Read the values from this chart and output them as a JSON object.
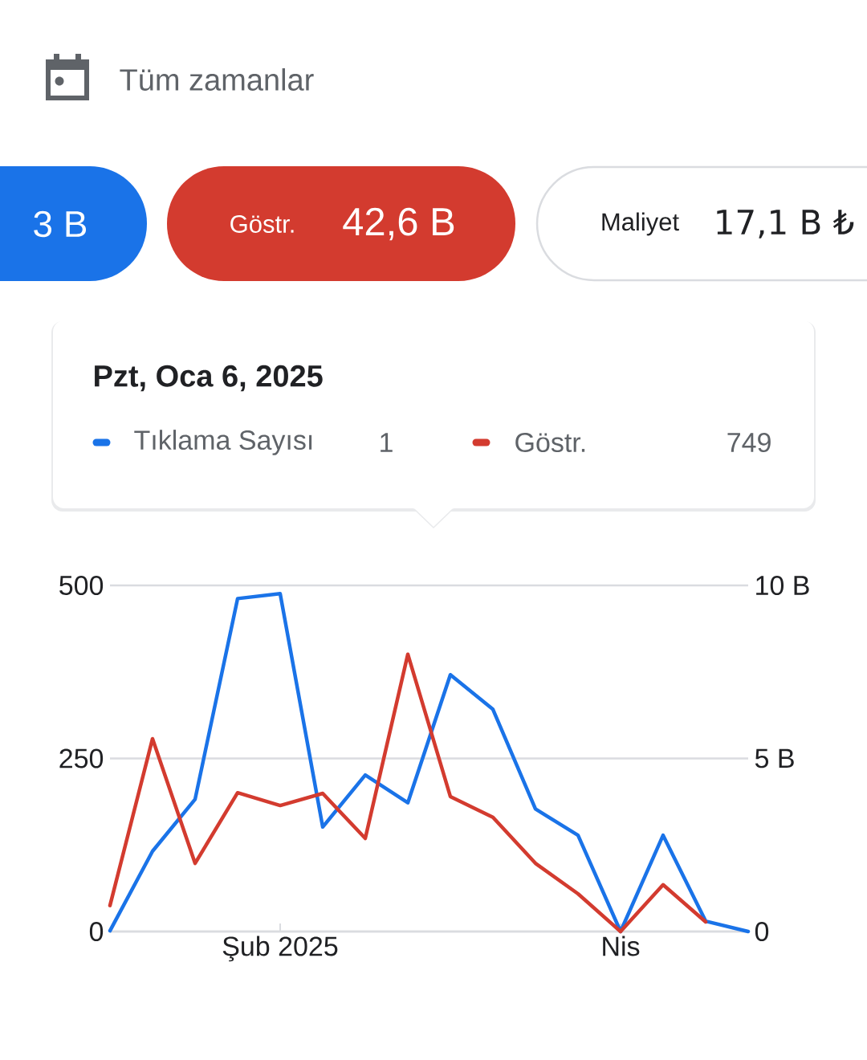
{
  "chart_data": {
    "type": "line",
    "categories": [
      null,
      null,
      null,
      null,
      "Şub 2025",
      null,
      null,
      null,
      null,
      null,
      null,
      null,
      "Nis",
      null,
      null,
      null
    ],
    "series": [
      {
        "name": "Tıklama Sayısı",
        "color": "#1a73e8",
        "values": [
          1,
          116,
          191,
          481,
          488,
          151,
          226,
          186,
          371,
          321,
          177,
          139,
          0,
          139,
          15,
          0
        ]
      },
      {
        "name": "Göstr.",
        "color": "#d33b2f",
        "axis": "y2",
        "values": [
          0.75,
          5.57,
          1.97,
          4.01,
          3.64,
          3.99,
          2.69,
          8.01,
          3.9,
          3.3,
          1.97,
          1.09,
          0,
          1.35,
          0.28,
          null
        ]
      }
    ],
    "ylim": [
      0,
      500
    ],
    "yticks": [
      0,
      250,
      500
    ],
    "y2lim": [
      0,
      10
    ],
    "y2ticks": [
      {
        "value": 0,
        "label": "0"
      },
      {
        "value": 5,
        "label": "5 B"
      },
      {
        "value": 10,
        "label": "10 B"
      }
    ],
    "grid": "y",
    "legend": "top",
    "legend_title": "Pzt, Oca 6, 2025",
    "marker": "none",
    "line_style": "solid",
    "annotations": [
      "Tüm zamanlar",
      "3 B",
      "Göstr.",
      "42,6 B",
      "Maliyet",
      "17,1 B ₺",
      "1",
      "749"
    ]
  }
}
